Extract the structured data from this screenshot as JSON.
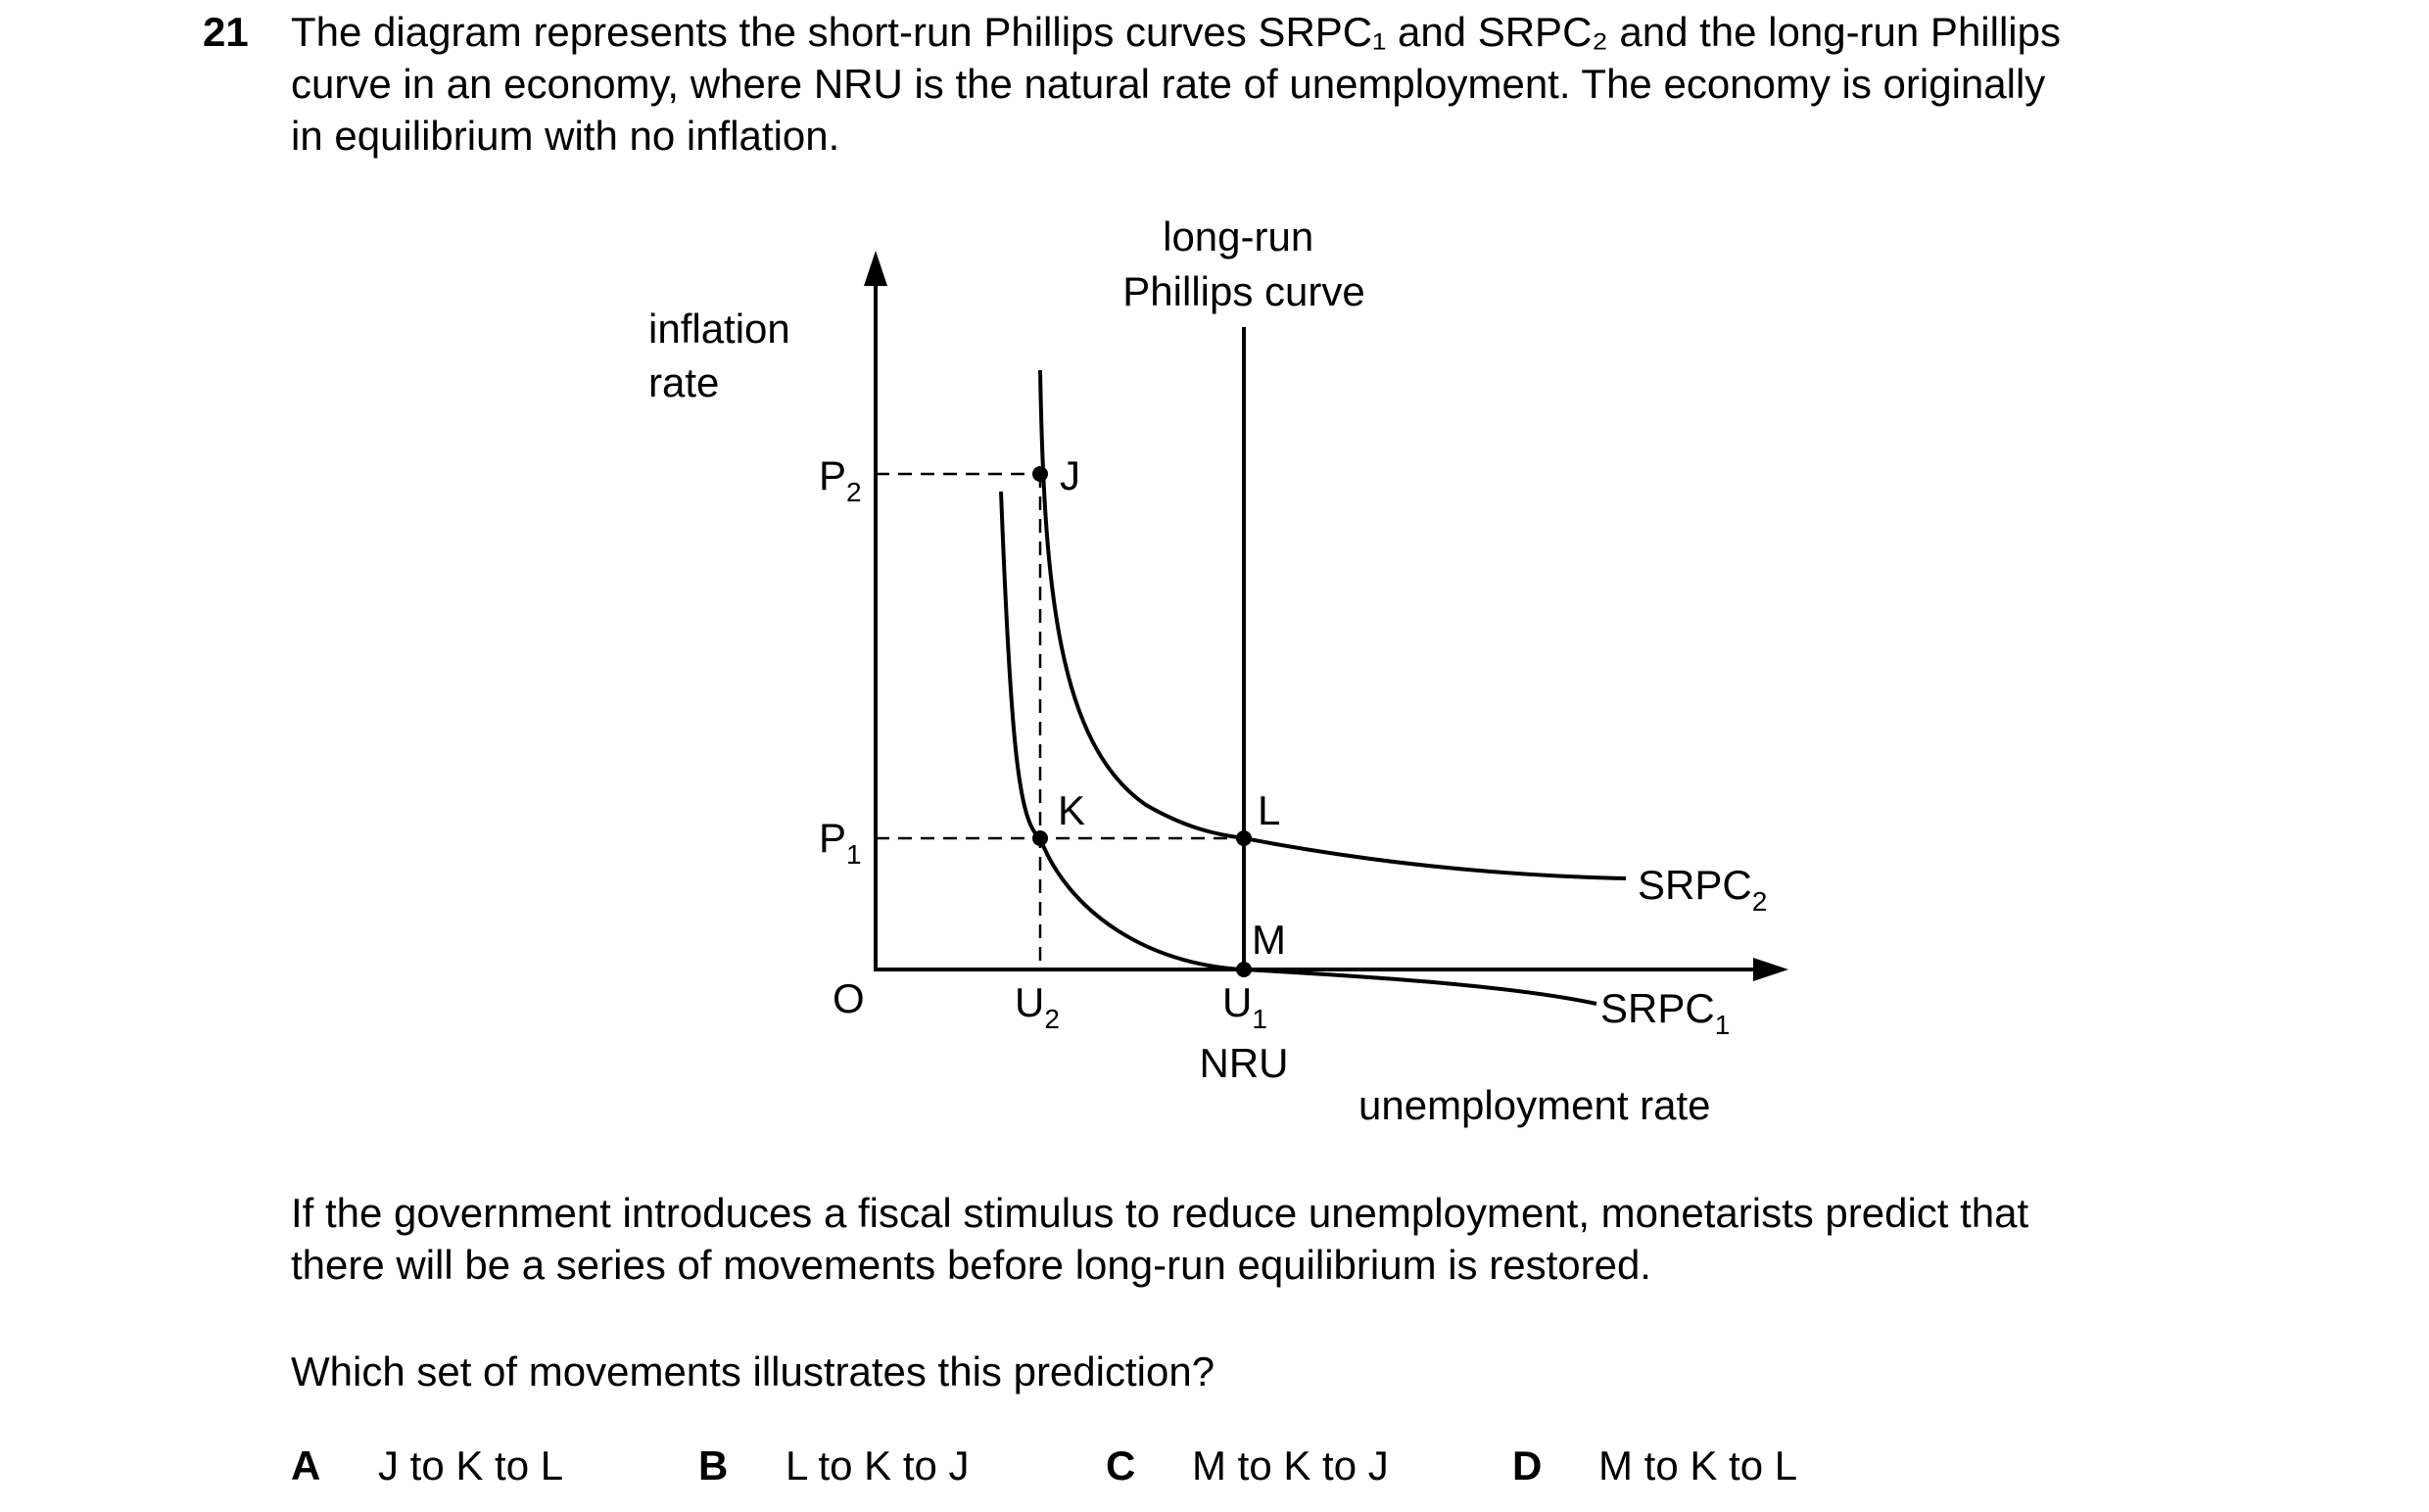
{
  "question": {
    "number": "21",
    "stem_lines": [
      "The diagram represents the short-run Phillips curves SRPC₁ and SRPC₂ and the long-run Phillips",
      "curve in an economy, where NRU is the natural rate of unemployment. The economy is originally",
      "in equilibrium with no inflation."
    ],
    "followup_lines": [
      "If the government introduces a fiscal stimulus to reduce unemployment, monetarists predict that",
      "there will be a series of movements before long-run equilibrium is restored."
    ],
    "prompt": "Which set of movements illustrates this prediction?"
  },
  "diagram": {
    "y_axis_label_lines": [
      "inflation",
      "rate"
    ],
    "x_axis_label": "unemployment rate",
    "origin_label": "O",
    "lrpc_label_lines": [
      "long-run",
      "Phillips curve"
    ],
    "nru_label": "NRU",
    "price_levels": [
      {
        "base": "P",
        "sub": "2"
      },
      {
        "base": "P",
        "sub": "1"
      }
    ],
    "unemployment_levels": [
      {
        "base": "U",
        "sub": "2"
      },
      {
        "base": "U",
        "sub": "1"
      }
    ],
    "points": [
      "J",
      "K",
      "L",
      "M"
    ],
    "curves": [
      {
        "base": "SRPC",
        "sub": "2"
      },
      {
        "base": "SRPC",
        "sub": "1"
      }
    ]
  },
  "options": [
    {
      "letter": "A",
      "text": "J to K to L"
    },
    {
      "letter": "B",
      "text": "L to K to J"
    },
    {
      "letter": "C",
      "text": "M to K to J"
    },
    {
      "letter": "D",
      "text": "M to K to L"
    }
  ]
}
